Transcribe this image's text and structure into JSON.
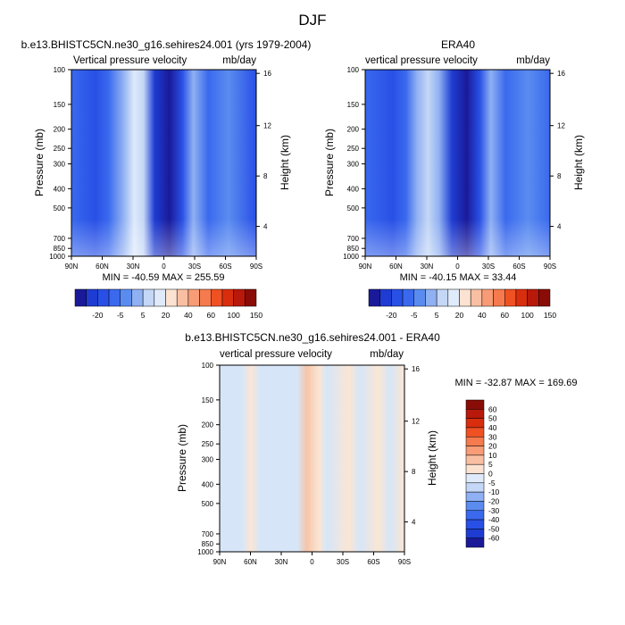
{
  "title": "DJF",
  "colors": {
    "blues": [
      "#1a1a99",
      "#1e3cd2",
      "#2850e6",
      "#3a69ee",
      "#5a8cf0",
      "#8fb0f2",
      "#c4d7f6",
      "#dfeafb"
    ],
    "reds": [
      "#fce2d0",
      "#f9bfa3",
      "#f79c76",
      "#f57a4e",
      "#ef5123",
      "#d92e0e",
      "#b8190a",
      "#8a0c06"
    ],
    "diff_neutral": "#d6e6f8",
    "diff_warm": "#fbe6d4",
    "diff_warm2": "#f6c5aa"
  },
  "chart_data": [
    {
      "type": "heatmap",
      "id": "model",
      "title": "b.e13.BHISTC5CN.ne30_g16.sehires24.001 (yrs 1979-2004)",
      "left_label": "Vertical pressure velocity",
      "right_label": "mb/day",
      "ylabel": "Pressure (mb)",
      "ylabel_right": "Height (km)",
      "x_ticks": [
        "90N",
        "60N",
        "30N",
        "0",
        "30S",
        "60S",
        "90S"
      ],
      "y_ticks": [
        "100",
        "150",
        "200",
        "250",
        "300",
        "400",
        "500",
        "700",
        "850",
        "1000"
      ],
      "height_ticks": [
        "16",
        "12",
        "8",
        "4"
      ],
      "stats": "MIN = -40.59   MAX = 255.59",
      "colorbar_labels": [
        "-20",
        "-5",
        "5",
        "20",
        "40",
        "60",
        "100",
        "150"
      ]
    },
    {
      "type": "heatmap",
      "id": "obs",
      "title": "ERA40",
      "left_label": "vertical pressure velocity",
      "right_label": "mb/day",
      "ylabel": "Pressure (mb)",
      "ylabel_right": "Height (km)",
      "x_ticks": [
        "90N",
        "60N",
        "30N",
        "0",
        "30S",
        "60S",
        "90S"
      ],
      "y_ticks": [
        "100",
        "150",
        "200",
        "250",
        "300",
        "400",
        "500",
        "700",
        "850",
        "1000"
      ],
      "height_ticks": [
        "16",
        "12",
        "8",
        "4"
      ],
      "stats": "MIN = -40.15   MAX =  33.44",
      "colorbar_labels": [
        "-20",
        "-5",
        "5",
        "20",
        "40",
        "60",
        "100",
        "150"
      ]
    },
    {
      "type": "heatmap",
      "id": "diff",
      "title": "b.e13.BHISTC5CN.ne30_g16.sehires24.001 - ERA40",
      "left_label": "vertical pressure velocity",
      "right_label": "mb/day",
      "ylabel": "Pressure (mb)",
      "ylabel_right": "Height (km)",
      "x_ticks": [
        "90N",
        "60N",
        "30N",
        "0",
        "30S",
        "60S",
        "90S"
      ],
      "y_ticks": [
        "100",
        "150",
        "200",
        "250",
        "300",
        "400",
        "500",
        "700",
        "850",
        "1000"
      ],
      "height_ticks": [
        "16",
        "12",
        "8",
        "4"
      ],
      "stats": "MIN = -32.87   MAX = 169.69",
      "colorbar_labels": [
        "60",
        "50",
        "40",
        "30",
        "20",
        "10",
        "5",
        "0",
        "-5",
        "-10",
        "-20",
        "-30",
        "-40",
        "-50",
        "-60"
      ]
    }
  ]
}
